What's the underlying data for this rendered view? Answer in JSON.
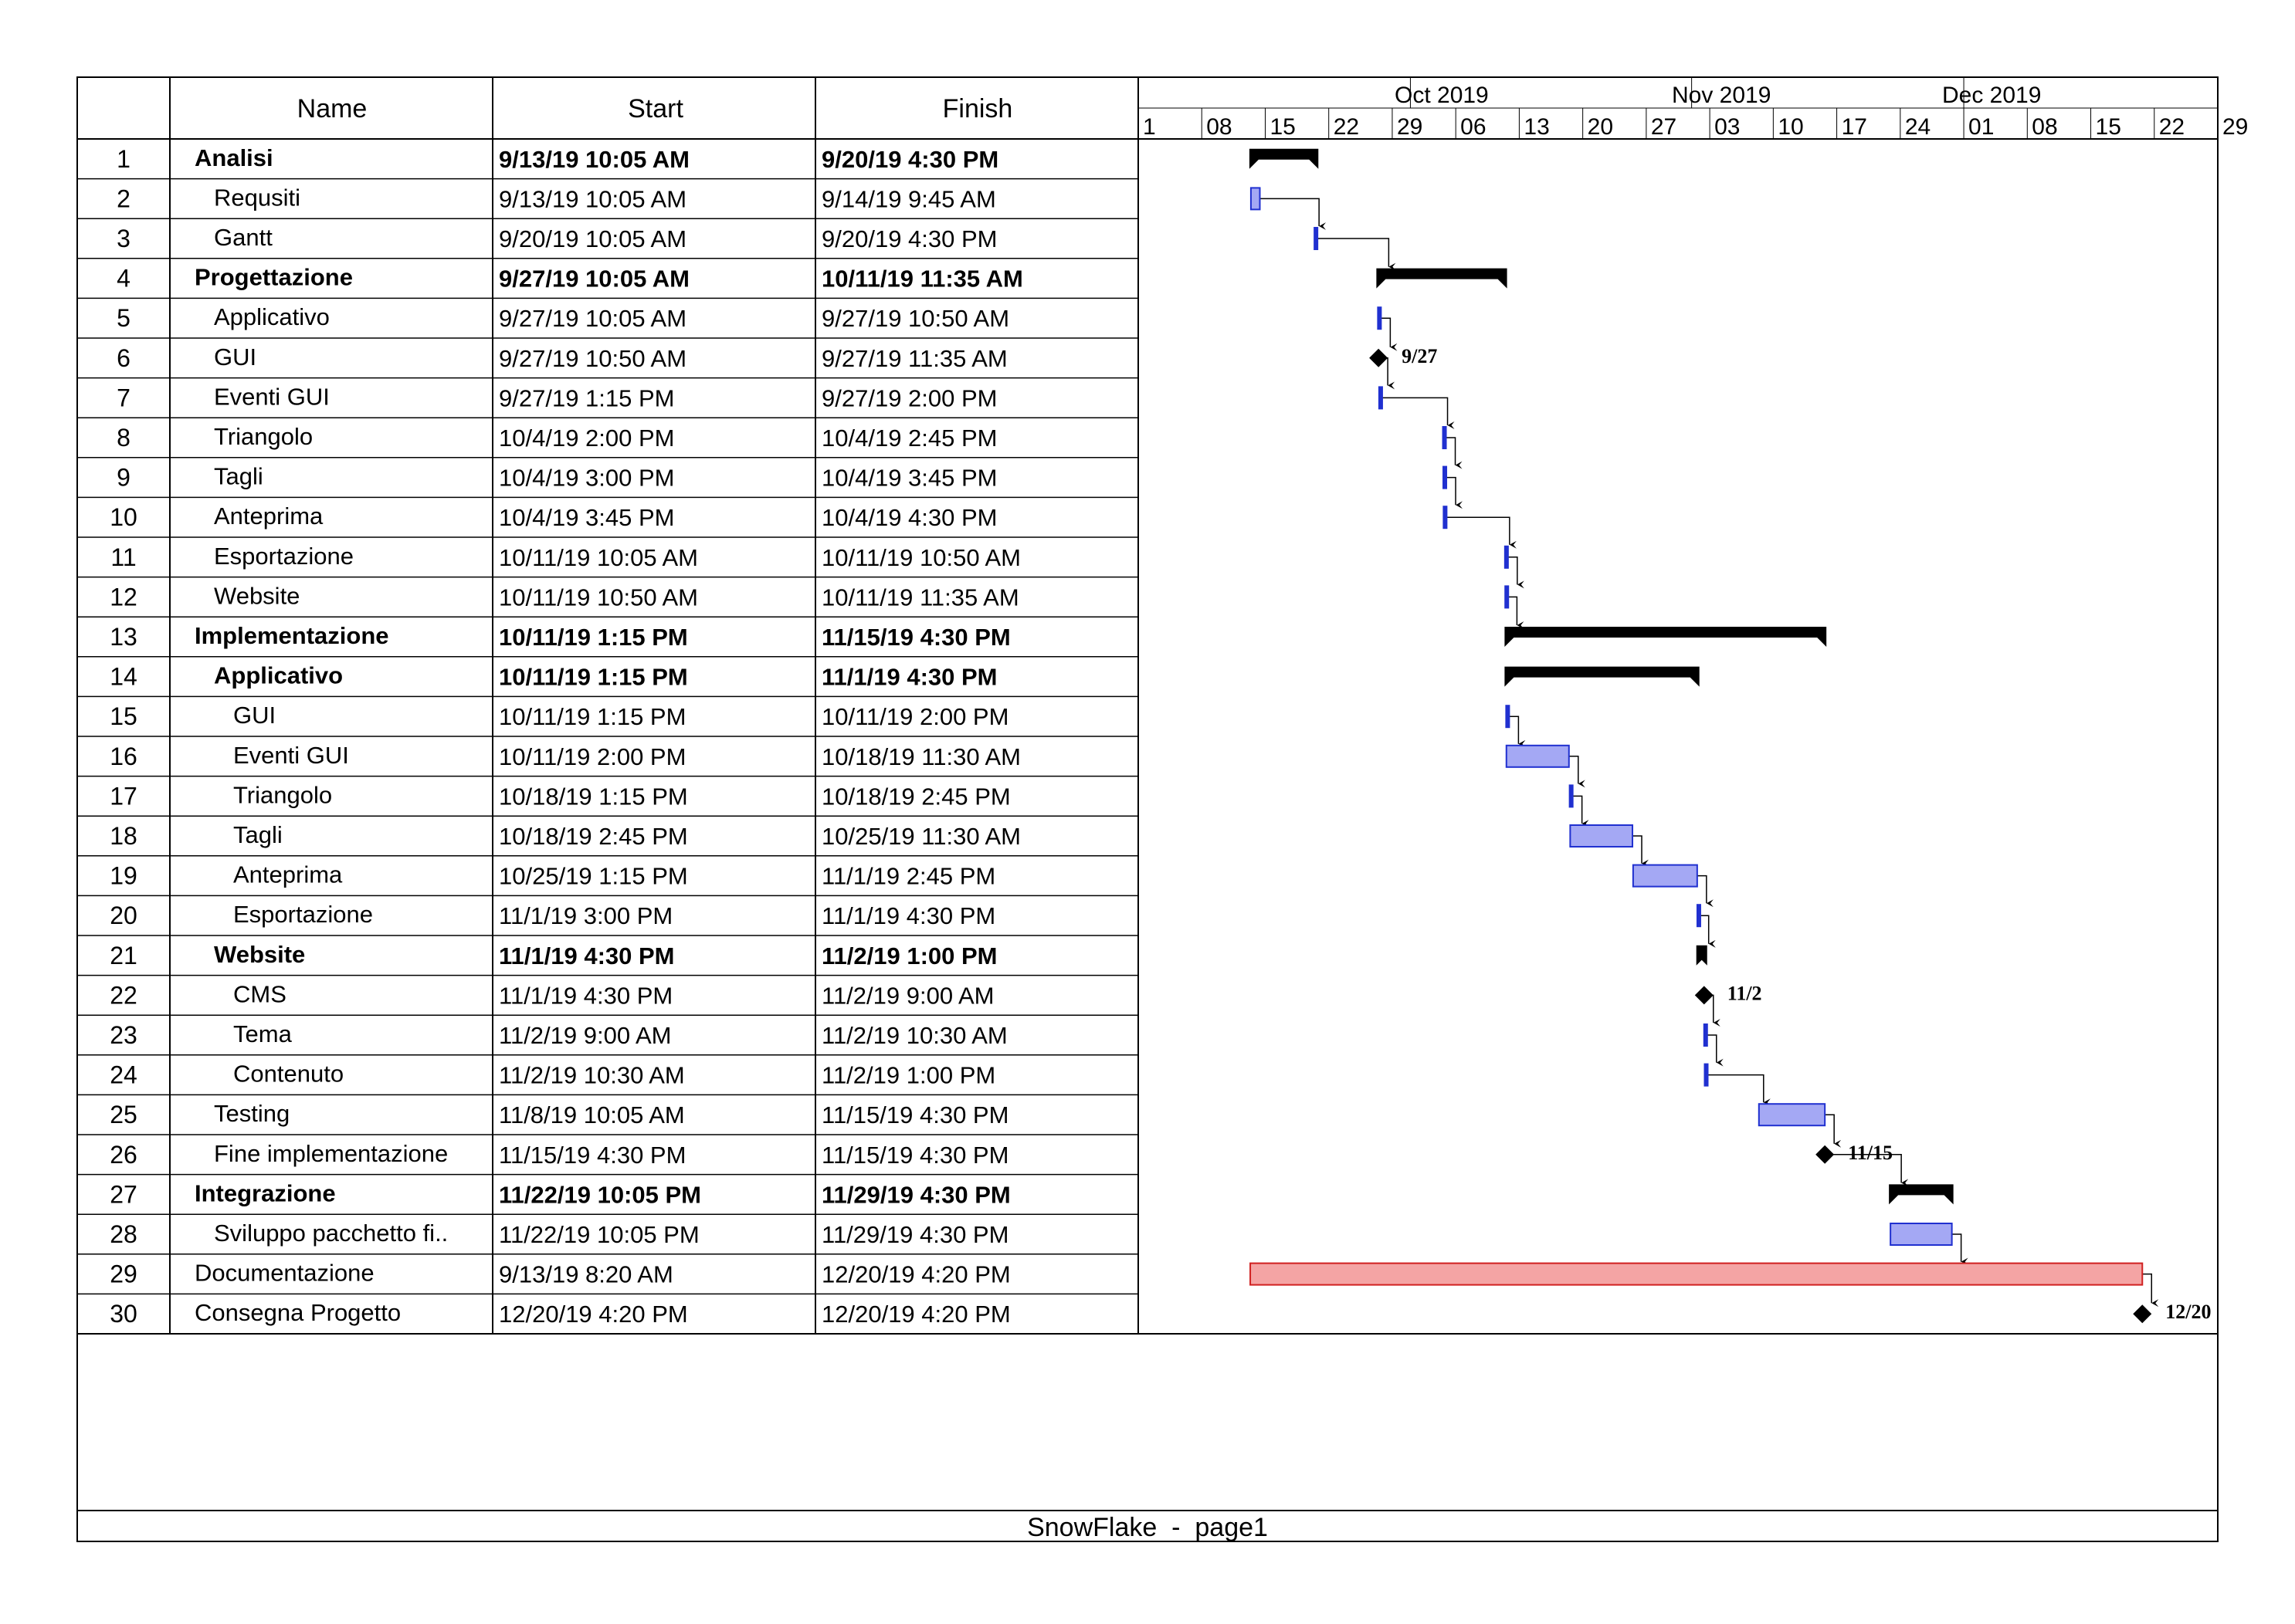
{
  "table": {
    "headers": {
      "id": "",
      "name": "Name",
      "start": "Start",
      "finish": "Finish"
    }
  },
  "timeline": {
    "months": [
      "Oct 2019",
      "Nov 2019",
      "Dec 2019"
    ],
    "week_ticks": [
      "1",
      "08",
      "15",
      "22",
      "29",
      "06",
      "13",
      "20",
      "27",
      "03",
      "10",
      "17",
      "24",
      "01",
      "08",
      "15",
      "22",
      "29"
    ]
  },
  "colors": {
    "summary": "#000000",
    "task_fill": "#a4a8f4",
    "task_stroke": "#2030d0",
    "critical_fill": "#f4a4a4",
    "critical_stroke": "#d02020",
    "grid": "#000000"
  },
  "chart_data": {
    "type": "gantt",
    "x_axis": "date",
    "xlim": [
      "2019-09-01",
      "2019-12-29"
    ],
    "tasks": [
      {
        "id": "1",
        "name": "Analisi",
        "start": "9/13/19 10:05 AM",
        "finish": "9/20/19 4:30 PM",
        "kind": "summary",
        "level": 0
      },
      {
        "id": "2",
        "name": "Requsiti",
        "start": "9/13/19 10:05 AM",
        "finish": "9/14/19 9:45 AM",
        "kind": "task",
        "level": 1
      },
      {
        "id": "3",
        "name": "Gantt",
        "start": "9/20/19 10:05 AM",
        "finish": "9/20/19 4:30 PM",
        "kind": "task",
        "level": 1
      },
      {
        "id": "4",
        "name": "Progettazione",
        "start": "9/27/19 10:05 AM",
        "finish": "10/11/19 11:35 AM",
        "kind": "summary",
        "level": 0
      },
      {
        "id": "5",
        "name": "Applicativo",
        "start": "9/27/19 10:05 AM",
        "finish": "9/27/19 10:50 AM",
        "kind": "task",
        "level": 1
      },
      {
        "id": "6",
        "name": "GUI",
        "start": "9/27/19 10:50 AM",
        "finish": "9/27/19 11:35 AM",
        "kind": "milestone",
        "level": 1,
        "label": "9/27"
      },
      {
        "id": "7",
        "name": "Eventi GUI",
        "start": "9/27/19 1:15 PM",
        "finish": "9/27/19 2:00 PM",
        "kind": "task",
        "level": 1
      },
      {
        "id": "8",
        "name": "Triangolo",
        "start": "10/4/19 2:00 PM",
        "finish": "10/4/19 2:45 PM",
        "kind": "task",
        "level": 1
      },
      {
        "id": "9",
        "name": "Tagli",
        "start": "10/4/19 3:00 PM",
        "finish": "10/4/19 3:45 PM",
        "kind": "task",
        "level": 1
      },
      {
        "id": "10",
        "name": "Anteprima",
        "start": "10/4/19 3:45 PM",
        "finish": "10/4/19 4:30 PM",
        "kind": "task",
        "level": 1
      },
      {
        "id": "11",
        "name": "Esportazione",
        "start": "10/11/19 10:05 AM",
        "finish": "10/11/19 10:50 AM",
        "kind": "task",
        "level": 1
      },
      {
        "id": "12",
        "name": "Website",
        "start": "10/11/19 10:50 AM",
        "finish": "10/11/19 11:35 AM",
        "kind": "task",
        "level": 1
      },
      {
        "id": "13",
        "name": "Implementazione",
        "start": "10/11/19 1:15 PM",
        "finish": "11/15/19 4:30 PM",
        "kind": "summary",
        "level": 0
      },
      {
        "id": "14",
        "name": "Applicativo",
        "start": "10/11/19 1:15 PM",
        "finish": "11/1/19 4:30 PM",
        "kind": "summary",
        "level": 1
      },
      {
        "id": "15",
        "name": "GUI",
        "start": "10/11/19 1:15 PM",
        "finish": "10/11/19 2:00 PM",
        "kind": "task",
        "level": 2
      },
      {
        "id": "16",
        "name": "Eventi GUI",
        "start": "10/11/19 2:00 PM",
        "finish": "10/18/19 11:30 AM",
        "kind": "task",
        "level": 2
      },
      {
        "id": "17",
        "name": "Triangolo",
        "start": "10/18/19 1:15 PM",
        "finish": "10/18/19 2:45 PM",
        "kind": "task",
        "level": 2
      },
      {
        "id": "18",
        "name": "Tagli",
        "start": "10/18/19 2:45 PM",
        "finish": "10/25/19 11:30 AM",
        "kind": "task",
        "level": 2
      },
      {
        "id": "19",
        "name": "Anteprima",
        "start": "10/25/19 1:15 PM",
        "finish": "11/1/19 2:45 PM",
        "kind": "task",
        "level": 2
      },
      {
        "id": "20",
        "name": "Esportazione",
        "start": "11/1/19 3:00 PM",
        "finish": "11/1/19 4:30 PM",
        "kind": "task",
        "level": 2
      },
      {
        "id": "21",
        "name": "Website",
        "start": "11/1/19 4:30 PM",
        "finish": "11/2/19 1:00 PM",
        "kind": "summary",
        "level": 1
      },
      {
        "id": "22",
        "name": "CMS",
        "start": "11/1/19 4:30 PM",
        "finish": "11/2/19 9:00 AM",
        "kind": "milestone",
        "level": 2,
        "label": "11/2"
      },
      {
        "id": "23",
        "name": "Tema",
        "start": "11/2/19 9:00 AM",
        "finish": "11/2/19 10:30 AM",
        "kind": "task",
        "level": 2
      },
      {
        "id": "24",
        "name": "Contenuto",
        "start": "11/2/19 10:30 AM",
        "finish": "11/2/19 1:00 PM",
        "kind": "task",
        "level": 2
      },
      {
        "id": "25",
        "name": "Testing",
        "start": "11/8/19 10:05 AM",
        "finish": "11/15/19 4:30 PM",
        "kind": "task",
        "level": 1
      },
      {
        "id": "26",
        "name": "Fine implementazione",
        "start": "11/15/19 4:30 PM",
        "finish": "11/15/19 4:30 PM",
        "kind": "milestone",
        "level": 1,
        "label": "11/15"
      },
      {
        "id": "27",
        "name": "Integrazione",
        "start": "11/22/19 10:05 PM",
        "finish": "11/29/19 4:30 PM",
        "kind": "summary",
        "level": 0
      },
      {
        "id": "28",
        "name": "Sviluppo pacchetto fi..",
        "start": "11/22/19 10:05 PM",
        "finish": "11/29/19 4:30 PM",
        "kind": "task",
        "level": 1
      },
      {
        "id": "29",
        "name": "Documentazione",
        "start": "9/13/19 8:20 AM",
        "finish": "12/20/19 4:20 PM",
        "kind": "critical",
        "level": 0
      },
      {
        "id": "30",
        "name": "Consegna Progetto",
        "start": "12/20/19 4:20 PM",
        "finish": "12/20/19 4:20 PM",
        "kind": "milestone",
        "level": 0,
        "label": "12/20"
      }
    ],
    "dependencies": [
      [
        2,
        3
      ],
      [
        3,
        4
      ],
      [
        5,
        6
      ],
      [
        6,
        7
      ],
      [
        7,
        8
      ],
      [
        8,
        9
      ],
      [
        9,
        10
      ],
      [
        10,
        11
      ],
      [
        11,
        12
      ],
      [
        12,
        13
      ],
      [
        15,
        16
      ],
      [
        16,
        17
      ],
      [
        17,
        18
      ],
      [
        18,
        19
      ],
      [
        19,
        20
      ],
      [
        20,
        21
      ],
      [
        22,
        23
      ],
      [
        23,
        24
      ],
      [
        24,
        25
      ],
      [
        25,
        26
      ],
      [
        26,
        27
      ],
      [
        28,
        29
      ],
      [
        29,
        30
      ]
    ]
  },
  "footer": {
    "text": "SnowFlake  -  page1"
  }
}
